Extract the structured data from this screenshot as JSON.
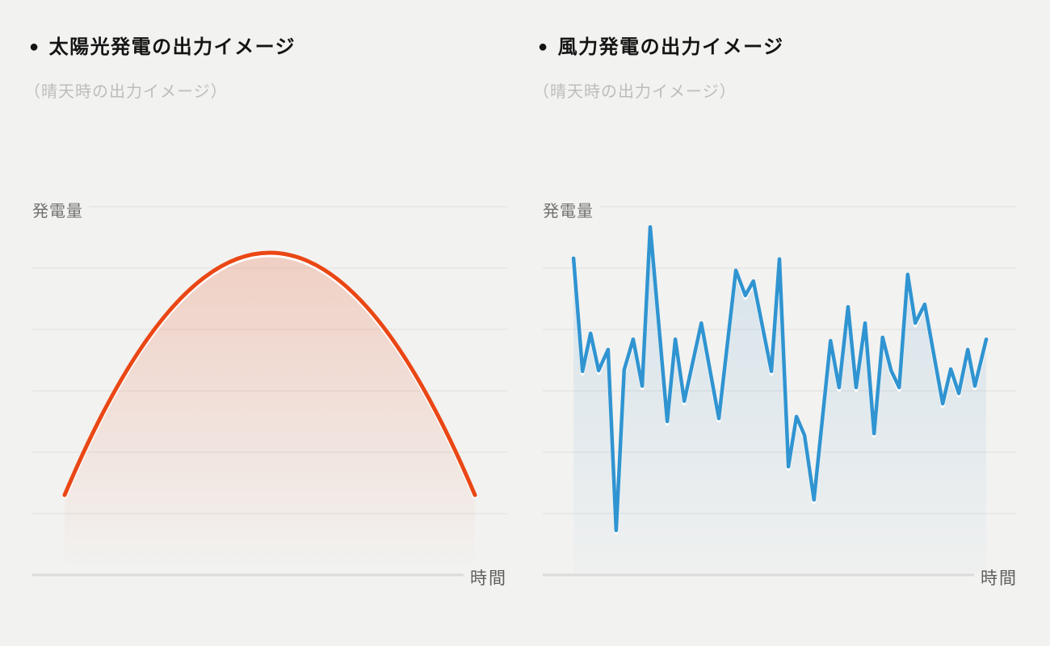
{
  "page": {
    "background_color": "#F2F2F0",
    "grid_color": "#E3E3E1",
    "axis_color": "#DBDBD9"
  },
  "panels": [
    {
      "title_bullet": "●",
      "title": "太陽光発電の出力イメージ",
      "subtitle": "（晴天時の出力イメージ）",
      "y_axis_label": "発電量",
      "x_axis_label": "時間"
    },
    {
      "title_bullet": "●",
      "title": "風力発電の出力イメージ",
      "subtitle": "（晴天時の出力イメージ）",
      "y_axis_label": "発電量",
      "x_axis_label": "時間"
    }
  ],
  "chart_data": [
    {
      "type": "area",
      "title": "太陽光発電の出力イメージ",
      "subtitle": "（晴天時の出力イメージ）",
      "xlabel": "時間",
      "ylabel": "発電量",
      "grid": true,
      "gridline_count": 6,
      "x_range_pct": [
        0,
        100
      ],
      "y_range_pct": [
        0,
        100
      ],
      "line_color": "#EA4715",
      "fill_top": "rgba(232,85,40,0.24)",
      "fill_bottom": "rgba(232,85,40,0)",
      "series": [
        {
          "name": "solar-output",
          "shape": "parabola",
          "description": "smooth bell curve: start, peak, end (x%, y% of chart height above time axis)",
          "points_xy_pct": [
            [
              6.8,
              21.7
            ],
            [
              50.0,
              87.5
            ],
            [
              93.2,
              21.7
            ]
          ]
        }
      ]
    },
    {
      "type": "area",
      "title": "風力発電の出力イメージ",
      "subtitle": "（晴天時の出力イメージ）",
      "xlabel": "時間",
      "ylabel": "発電量",
      "grid": true,
      "gridline_count": 6,
      "x_range_pct": [
        0,
        100
      ],
      "y_range_pct": [
        0,
        100
      ],
      "line_color": "#3094D1",
      "fill_top": "rgba(60,145,205,0.16)",
      "fill_bottom": "rgba(60,145,205,0.02)",
      "series": [
        {
          "name": "wind-output",
          "shape": "polyline",
          "description": "irregular fluctuating output (x%, y% of chart height above time axis)",
          "points_xy_pct": [
            [
              6.5,
              86.0
            ],
            [
              8.4,
              55.3
            ],
            [
              10.1,
              65.6
            ],
            [
              11.8,
              55.5
            ],
            [
              13.8,
              61.2
            ],
            [
              15.5,
              12.1
            ],
            [
              17.2,
              55.7
            ],
            [
              19.1,
              64.0
            ],
            [
              21.0,
              51.3
            ],
            [
              22.7,
              94.5
            ],
            [
              26.3,
              41.7
            ],
            [
              28.0,
              64.0
            ],
            [
              29.9,
              47.2
            ],
            [
              33.5,
              68.4
            ],
            [
              37.2,
              42.5
            ],
            [
              40.8,
              82.7
            ],
            [
              42.8,
              75.9
            ],
            [
              44.5,
              79.8
            ],
            [
              48.3,
              55.3
            ],
            [
              50.0,
              85.8
            ],
            [
              51.9,
              29.4
            ],
            [
              53.6,
              43.0
            ],
            [
              55.3,
              37.9
            ],
            [
              57.3,
              20.4
            ],
            [
              60.8,
              63.6
            ],
            [
              62.6,
              50.9
            ],
            [
              64.5,
              72.8
            ],
            [
              66.2,
              50.9
            ],
            [
              68.1,
              68.4
            ],
            [
              70.0,
              38.4
            ],
            [
              71.8,
              64.5
            ],
            [
              73.6,
              55.5
            ],
            [
              75.3,
              50.9
            ],
            [
              77.1,
              81.6
            ],
            [
              78.7,
              68.4
            ],
            [
              80.7,
              73.5
            ],
            [
              84.5,
              46.5
            ],
            [
              86.2,
              55.9
            ],
            [
              87.9,
              49.3
            ],
            [
              89.8,
              61.2
            ],
            [
              91.3,
              51.3
            ],
            [
              93.7,
              64.0
            ]
          ]
        }
      ]
    }
  ]
}
